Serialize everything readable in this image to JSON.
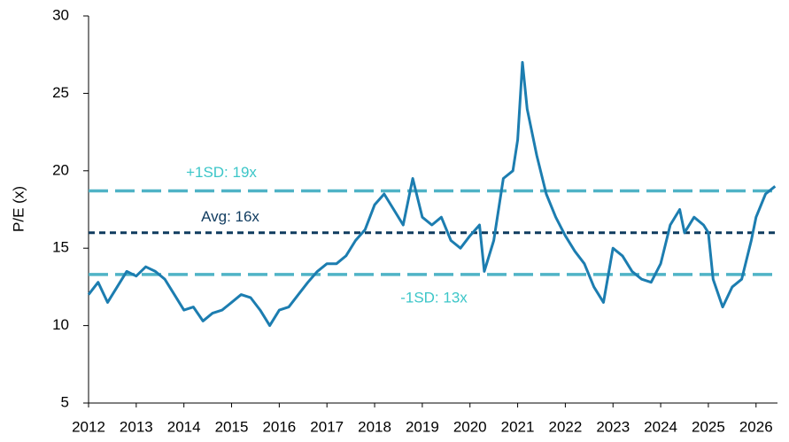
{
  "chart_data": {
    "type": "line",
    "y_label": "P/E (x)",
    "x": [
      2012.0,
      2012.2,
      2012.4,
      2012.6,
      2012.8,
      2013.0,
      2013.2,
      2013.4,
      2013.6,
      2013.8,
      2014.0,
      2014.2,
      2014.4,
      2014.6,
      2014.8,
      2015.0,
      2015.2,
      2015.4,
      2015.6,
      2015.8,
      2016.0,
      2016.2,
      2016.4,
      2016.6,
      2016.8,
      2017.0,
      2017.2,
      2017.4,
      2017.6,
      2017.8,
      2018.0,
      2018.2,
      2018.4,
      2018.6,
      2018.8,
      2019.0,
      2019.2,
      2019.4,
      2019.6,
      2019.8,
      2020.0,
      2020.2,
      2020.3,
      2020.5,
      2020.7,
      2020.9,
      2021.0,
      2021.1,
      2021.2,
      2021.4,
      2021.6,
      2021.8,
      2022.0,
      2022.2,
      2022.4,
      2022.6,
      2022.8,
      2023.0,
      2023.2,
      2023.4,
      2023.6,
      2023.8,
      2024.0,
      2024.2,
      2024.4,
      2024.5,
      2024.7,
      2024.9,
      2025.0,
      2025.1,
      2025.3,
      2025.5,
      2025.7,
      2025.9,
      2026.0,
      2026.2,
      2026.4
    ],
    "series": [
      {
        "color": "#1c7db0",
        "values": [
          12.0,
          12.8,
          11.5,
          12.5,
          13.5,
          13.2,
          13.8,
          13.5,
          13.0,
          12.0,
          11.0,
          11.2,
          10.3,
          10.8,
          11.0,
          11.5,
          12.0,
          11.8,
          11.0,
          10.0,
          11.0,
          11.2,
          12.0,
          12.8,
          13.5,
          14.0,
          14.0,
          14.5,
          15.5,
          16.2,
          17.8,
          18.5,
          17.5,
          16.5,
          19.5,
          17.0,
          16.5,
          17.0,
          15.5,
          15.0,
          15.8,
          16.5,
          13.5,
          15.5,
          19.5,
          20.0,
          22.0,
          27.0,
          24.0,
          21.0,
          18.5,
          17.0,
          15.8,
          14.8,
          14.0,
          12.5,
          11.5,
          15.0,
          14.5,
          13.5,
          13.0,
          12.8,
          14.0,
          16.5,
          17.5,
          16.0,
          17.0,
          16.5,
          16.0,
          13.0,
          11.2,
          12.5,
          13.0,
          15.5,
          17.0,
          18.5,
          19.0
        ]
      }
    ],
    "reference_lines": [
      {
        "label": "+1SD: 19x",
        "value": 18.7,
        "color": "#4fb3c6",
        "label_color": "#3cc6c8",
        "style": "dashed"
      },
      {
        "label": "Avg: 16x",
        "value": 16.0,
        "color": "#0f3b5f",
        "label_color": "#0f3b5f",
        "style": "dotted"
      },
      {
        "label": "-1SD: 13x",
        "value": 13.3,
        "color": "#4fb3c6",
        "label_color": "#3cc6c8",
        "style": "dashed"
      }
    ],
    "xlim": [
      2012,
      2026.45
    ],
    "xticks": [
      2012,
      2013,
      2014,
      2015,
      2016,
      2017,
      2018,
      2019,
      2020,
      2021,
      2022,
      2023,
      2024,
      2025,
      2026
    ],
    "ylim": [
      5,
      30
    ],
    "yticks": [
      5,
      10,
      15,
      20,
      25,
      30
    ]
  }
}
